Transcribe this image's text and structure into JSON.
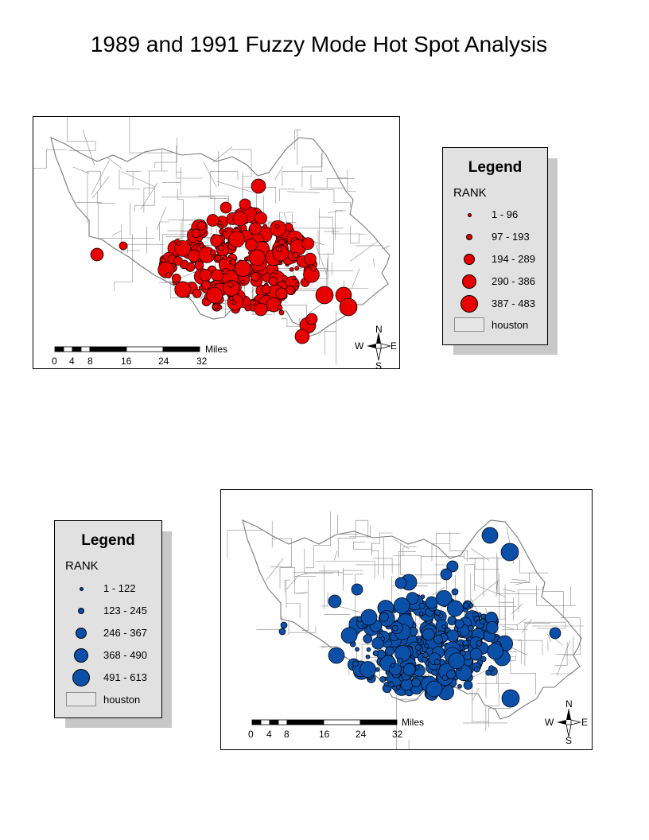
{
  "title": "1989 and 1991 Fuzzy Mode Hot Spot Analysis",
  "colors": {
    "red_symbol": "#e60000",
    "blue_symbol": "#0a4fa8",
    "outline": "#000000",
    "boundary": "#7a7a7a",
    "polygon_fill": "#e6e6e6",
    "legend_bg": "#e1e1e1",
    "shadow": "#c8c8c8"
  },
  "maps": [
    {
      "id": "map-1989",
      "symbol_color": "#e60000",
      "scale_bar": {
        "unit": "Miles",
        "ticks": [
          "0",
          "4",
          "8",
          "16",
          "24",
          "32"
        ]
      },
      "north_arrow": {
        "n": "N",
        "s": "S",
        "e": "E",
        "w": "W"
      },
      "legend": {
        "title": "Legend",
        "field": "RANK",
        "classes": [
          {
            "label": "1 - 96",
            "size": 1
          },
          {
            "label": "97 - 193",
            "size": 2
          },
          {
            "label": "194 - 289",
            "size": 3
          },
          {
            "label": "290 - 386",
            "size": 4
          },
          {
            "label": "387 - 483",
            "size": 5
          }
        ],
        "polygon_label": "houston"
      }
    },
    {
      "id": "map-1991",
      "symbol_color": "#0a4fa8",
      "scale_bar": {
        "unit": "Miles",
        "ticks": [
          "0",
          "4",
          "8",
          "16",
          "24",
          "32"
        ]
      },
      "north_arrow": {
        "n": "N",
        "s": "S",
        "e": "E",
        "w": "W"
      },
      "legend": {
        "title": "Legend",
        "field": "RANK",
        "classes": [
          {
            "label": "1 - 122",
            "size": 1
          },
          {
            "label": "123 - 245",
            "size": 2
          },
          {
            "label": "246 - 367",
            "size": 3
          },
          {
            "label": "368 - 490",
            "size": 4
          },
          {
            "label": "491 - 613",
            "size": 5
          }
        ],
        "polygon_label": "houston"
      }
    }
  ]
}
